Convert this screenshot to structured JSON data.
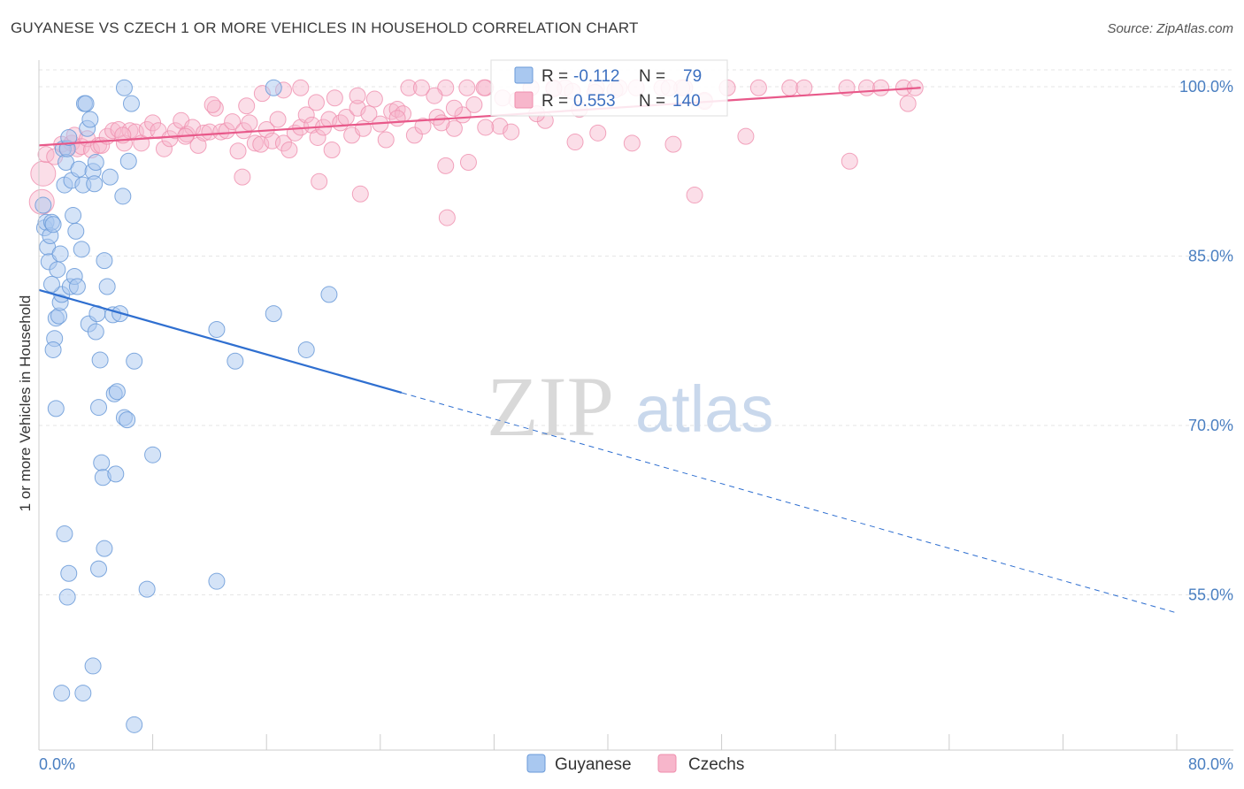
{
  "header": {
    "title": "GUYANESE VS CZECH 1 OR MORE VEHICLES IN HOUSEHOLD CORRELATION CHART",
    "source": "Source: ZipAtlas.com"
  },
  "legend_box": {
    "r_label": "R =",
    "n_label": "N =",
    "series": [
      {
        "r": "-0.112",
        "n": "79"
      },
      {
        "r": "0.553",
        "n": "140"
      }
    ]
  },
  "watermark": {
    "zip": "ZIP",
    "atlas": "atlas"
  },
  "colors": {
    "guyanese_fill": "#a9c8f0",
    "guyanese_stroke": "#6a9ad8",
    "guyanese_line": "#2f6fd0",
    "czech_fill": "#f7b6cb",
    "czech_stroke": "#ef8fae",
    "czech_line": "#e8598a",
    "grid": "#e6e6e6",
    "tick_label": "#4a7fc1"
  },
  "chart_data": {
    "type": "scatter",
    "title": "GUYANESE VS CZECH 1 OR MORE VEHICLES IN HOUSEHOLD CORRELATION CHART",
    "xlabel": "",
    "ylabel": "1 or more Vehicles in Household",
    "xlim": [
      0,
      80
    ],
    "ylim": [
      40,
      101
    ],
    "x_tick_labels": [
      "0.0%",
      "80.0%"
    ],
    "y_ticks": [
      55,
      70,
      85,
      100
    ],
    "y_tick_labels": [
      "55.0%",
      "70.0%",
      "85.0%",
      "100.0%"
    ],
    "legend": [
      "Guyanese",
      "Czechs"
    ],
    "series": [
      {
        "name": "Guyanese",
        "r": -0.112,
        "n": 79,
        "trend": {
          "x0": 0,
          "y0": 82.0,
          "x1": 25.5,
          "y1": 72.9,
          "dash_x1": 80,
          "dash_y1": 53.4
        },
        "points": [
          [
            0.3,
            89.5
          ],
          [
            0.4,
            87.5
          ],
          [
            0.5,
            88.0
          ],
          [
            0.6,
            85.8
          ],
          [
            0.7,
            84.5
          ],
          [
            0.8,
            86.8
          ],
          [
            0.9,
            88.0
          ],
          [
            1.0,
            87.8
          ],
          [
            1.1,
            77.7
          ],
          [
            1.0,
            76.7
          ],
          [
            1.2,
            79.5
          ],
          [
            1.3,
            83.8
          ],
          [
            1.4,
            79.7
          ],
          [
            1.5,
            80.9
          ],
          [
            1.6,
            81.6
          ],
          [
            1.7,
            94.5
          ],
          [
            1.8,
            91.3
          ],
          [
            1.9,
            93.3
          ],
          [
            2.0,
            94.5
          ],
          [
            2.1,
            95.5
          ],
          [
            2.2,
            82.3
          ],
          [
            2.3,
            91.7
          ],
          [
            2.5,
            83.2
          ],
          [
            2.6,
            87.2
          ],
          [
            2.7,
            82.3
          ],
          [
            2.8,
            92.7
          ],
          [
            3.0,
            85.6
          ],
          [
            3.1,
            91.3
          ],
          [
            3.2,
            98.5
          ],
          [
            3.3,
            98.5
          ],
          [
            3.4,
            96.3
          ],
          [
            3.5,
            79.0
          ],
          [
            3.6,
            97.1
          ],
          [
            3.8,
            92.5
          ],
          [
            3.9,
            91.4
          ],
          [
            4.0,
            93.3
          ],
          [
            4.1,
            79.9
          ],
          [
            4.2,
            71.6
          ],
          [
            4.3,
            75.8
          ],
          [
            4.4,
            66.7
          ],
          [
            4.5,
            65.4
          ],
          [
            4.6,
            84.6
          ],
          [
            4.8,
            82.3
          ],
          [
            5.0,
            92.0
          ],
          [
            5.2,
            79.8
          ],
          [
            5.3,
            72.8
          ],
          [
            5.5,
            73.0
          ],
          [
            5.7,
            79.9
          ],
          [
            5.9,
            90.3
          ],
          [
            6.0,
            70.7
          ],
          [
            6.2,
            70.5
          ],
          [
            6.5,
            98.5
          ],
          [
            6.0,
            99.9
          ],
          [
            6.7,
            75.7
          ],
          [
            8.0,
            67.4
          ],
          [
            12.5,
            78.5
          ],
          [
            13.8,
            75.7
          ],
          [
            16.5,
            79.9
          ],
          [
            16.5,
            99.9
          ],
          [
            18.8,
            76.7
          ],
          [
            20.4,
            81.6
          ],
          [
            1.8,
            60.4
          ],
          [
            2.1,
            56.9
          ],
          [
            4.6,
            59.1
          ],
          [
            4.2,
            57.3
          ],
          [
            7.6,
            55.5
          ],
          [
            12.5,
            56.2
          ],
          [
            2.0,
            54.8
          ],
          [
            3.8,
            48.7
          ],
          [
            1.6,
            46.3
          ],
          [
            3.1,
            46.3
          ],
          [
            6.7,
            43.5
          ],
          [
            1.2,
            71.5
          ],
          [
            5.4,
            65.7
          ],
          [
            0.9,
            82.5
          ],
          [
            2.4,
            88.6
          ],
          [
            1.5,
            85.2
          ],
          [
            4.0,
            78.3
          ],
          [
            6.3,
            93.4
          ]
        ]
      },
      {
        "name": "Czechs",
        "r": 0.553,
        "n": 140,
        "trend": {
          "x0": 0,
          "y0": 94.8,
          "x1": 62,
          "y1": 99.9
        },
        "points": [
          [
            0.2,
            89.8
          ],
          [
            0.3,
            92.3
          ],
          [
            0.5,
            94.0
          ],
          [
            1.1,
            93.8
          ],
          [
            1.6,
            94.9
          ],
          [
            2.0,
            94.6
          ],
          [
            2.3,
            95.0
          ],
          [
            2.5,
            95.7
          ],
          [
            2.7,
            94.5
          ],
          [
            3.0,
            94.7
          ],
          [
            3.4,
            95.4
          ],
          [
            3.7,
            94.4
          ],
          [
            4.2,
            94.8
          ],
          [
            4.4,
            94.8
          ],
          [
            4.8,
            95.6
          ],
          [
            5.2,
            96.1
          ],
          [
            5.6,
            96.2
          ],
          [
            6.0,
            95.0
          ],
          [
            6.4,
            96.1
          ],
          [
            6.8,
            96.0
          ],
          [
            7.2,
            95.0
          ],
          [
            7.6,
            96.2
          ],
          [
            8.0,
            96.8
          ],
          [
            8.4,
            96.1
          ],
          [
            8.8,
            94.5
          ],
          [
            9.2,
            95.4
          ],
          [
            9.6,
            96.1
          ],
          [
            10.0,
            97.0
          ],
          [
            10.4,
            95.8
          ],
          [
            10.8,
            96.4
          ],
          [
            11.2,
            94.8
          ],
          [
            11.6,
            95.9
          ],
          [
            12.0,
            96.0
          ],
          [
            12.4,
            98.1
          ],
          [
            12.8,
            96.0
          ],
          [
            13.2,
            96.1
          ],
          [
            13.6,
            96.9
          ],
          [
            14.0,
            94.3
          ],
          [
            14.4,
            96.1
          ],
          [
            14.8,
            96.8
          ],
          [
            15.2,
            95.0
          ],
          [
            15.6,
            94.9
          ],
          [
            16.0,
            96.2
          ],
          [
            16.4,
            95.2
          ],
          [
            16.8,
            97.1
          ],
          [
            17.2,
            95.0
          ],
          [
            17.6,
            94.4
          ],
          [
            18.0,
            95.9
          ],
          [
            18.4,
            96.4
          ],
          [
            18.8,
            97.5
          ],
          [
            19.2,
            96.6
          ],
          [
            19.6,
            95.5
          ],
          [
            20.0,
            96.4
          ],
          [
            20.4,
            97.1
          ],
          [
            20.8,
            99.0
          ],
          [
            21.2,
            96.8
          ],
          [
            21.6,
            97.3
          ],
          [
            22.0,
            95.7
          ],
          [
            22.4,
            98.1
          ],
          [
            22.8,
            96.3
          ],
          [
            23.2,
            97.6
          ],
          [
            23.6,
            98.9
          ],
          [
            24.0,
            96.7
          ],
          [
            24.4,
            95.3
          ],
          [
            24.8,
            97.8
          ],
          [
            25.2,
            98.0
          ],
          [
            25.6,
            97.6
          ],
          [
            26.0,
            99.9
          ],
          [
            26.4,
            95.7
          ],
          [
            27.0,
            96.5
          ],
          [
            28.0,
            97.3
          ],
          [
            28.6,
            99.9
          ],
          [
            29.2,
            96.3
          ],
          [
            29.8,
            97.5
          ],
          [
            30.6,
            98.4
          ],
          [
            31.4,
            99.9
          ],
          [
            32.4,
            96.5
          ],
          [
            33.6,
            98.8
          ],
          [
            34.6,
            99.9
          ],
          [
            35.6,
            97.0
          ],
          [
            36.2,
            99.9
          ],
          [
            37.0,
            99.9
          ],
          [
            38.0,
            98.0
          ],
          [
            39.2,
            99.9
          ],
          [
            40.8,
            99.9
          ],
          [
            42.0,
            99.9
          ],
          [
            43.8,
            99.9
          ],
          [
            45.4,
            99.9
          ],
          [
            46.8,
            98.8
          ],
          [
            48.4,
            99.9
          ],
          [
            50.6,
            99.9
          ],
          [
            52.8,
            99.9
          ],
          [
            53.8,
            99.9
          ],
          [
            56.8,
            99.9
          ],
          [
            58.2,
            99.9
          ],
          [
            59.2,
            99.9
          ],
          [
            60.8,
            99.9
          ],
          [
            61.6,
            99.9
          ],
          [
            46.8,
            98.7
          ],
          [
            35.0,
            97.6
          ],
          [
            20.6,
            94.4
          ],
          [
            10.3,
            95.6
          ],
          [
            12.2,
            98.4
          ],
          [
            14.6,
            98.3
          ],
          [
            15.7,
            99.4
          ],
          [
            17.2,
            99.7
          ],
          [
            19.5,
            98.6
          ],
          [
            22.4,
            99.2
          ],
          [
            25.2,
            97.2
          ],
          [
            28.3,
            96.8
          ],
          [
            31.4,
            96.4
          ],
          [
            33.2,
            96.0
          ],
          [
            37.7,
            95.1
          ],
          [
            39.3,
            95.9
          ],
          [
            41.7,
            95.0
          ],
          [
            44.6,
            94.9
          ],
          [
            49.7,
            95.6
          ],
          [
            57.0,
            93.4
          ],
          [
            61.1,
            98.5
          ],
          [
            14.3,
            92.0
          ],
          [
            19.7,
            91.6
          ],
          [
            22.6,
            90.5
          ],
          [
            28.6,
            93.0
          ],
          [
            30.2,
            93.3
          ],
          [
            28.7,
            88.4
          ],
          [
            46.1,
            90.4
          ],
          [
            45.2,
            99.9
          ],
          [
            44.3,
            99.9
          ],
          [
            40.5,
            99.7
          ],
          [
            39.1,
            99.5
          ],
          [
            37.5,
            99.6
          ],
          [
            36.2,
            99.8
          ],
          [
            32.6,
            99.0
          ],
          [
            31.3,
            99.9
          ],
          [
            30.1,
            99.9
          ],
          [
            29.2,
            98.1
          ],
          [
            27.8,
            99.2
          ],
          [
            26.9,
            99.9
          ],
          [
            18.4,
            99.9
          ],
          [
            5.9,
            95.7
          ]
        ]
      }
    ]
  },
  "bottom_legend": {
    "items": [
      "Guyanese",
      "Czechs"
    ]
  }
}
